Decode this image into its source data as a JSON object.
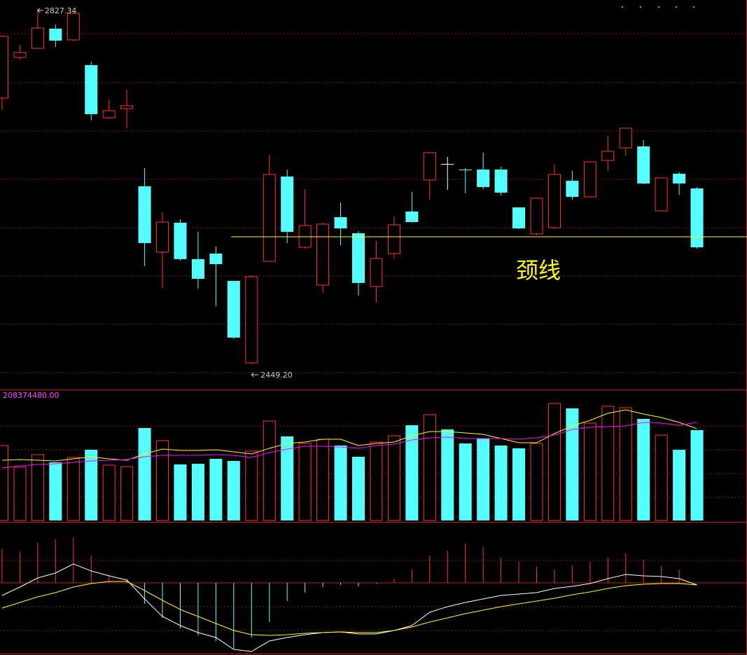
{
  "chart_data": [
    {
      "type": "candlestick",
      "open": [
        2732.1,
        2775.2,
        2784.9,
        2805.8,
        2793.9,
        2767.1,
        2711.2,
        2720.9,
        2638.3,
        2568.3,
        2599.6,
        2560.9,
        2566.8,
        2537.8,
        2450.7,
        2558.6,
        2648.7,
        2573.5,
        2533.3,
        2605.5,
        2588.4,
        2531.8,
        2566.8,
        2611.5,
        2645.0,
        2662.1,
        2656.1,
        2656.1,
        2656.1,
        2615.9,
        2587.7,
        2594.4,
        2644.2,
        2627.1,
        2665.8,
        2679.2,
        2680.7,
        2612.2,
        2651.7,
        2636.0
      ],
      "high": [
        2799.1,
        2788.6,
        2827.34,
        2810.2,
        2823.6,
        2770.8,
        2730.6,
        2741.0,
        2657.6,
        2610.7,
        2603.3,
        2589.9,
        2574.3,
        2537.8,
        2543.7,
        2671.8,
        2656.1,
        2635.3,
        2599.6,
        2621.2,
        2590.6,
        2580.2,
        2606.3,
        2632.3,
        2674.0,
        2669.5,
        2657.6,
        2674.0,
        2659.1,
        2615.9,
        2625.6,
        2662.1,
        2654.7,
        2664.3,
        2691.9,
        2700.1,
        2687.4,
        2647.2,
        2653.9,
        2637.5
      ],
      "low": [
        2719.4,
        2773.0,
        2784.2,
        2786.4,
        2792.4,
        2708.3,
        2709.7,
        2700.1,
        2553.4,
        2529.6,
        2559.4,
        2529.6,
        2511.0,
        2476.0,
        2449.2,
        2558.6,
        2578.0,
        2572.0,
        2525.1,
        2575.7,
        2522.2,
        2514.7,
        2560.9,
        2599.6,
        2624.1,
        2634.6,
        2630.8,
        2635.3,
        2628.6,
        2592.9,
        2586.2,
        2592.9,
        2624.1,
        2626.4,
        2654.7,
        2671.0,
        2640.5,
        2612.2,
        2629.3,
        2572.0
      ],
      "close": [
        2797.6,
        2780.5,
        2806.5,
        2793.1,
        2822.1,
        2715.0,
        2718.7,
        2723.9,
        2578.0,
        2600.3,
        2560.9,
        2540.0,
        2555.6,
        2477.5,
        2542.3,
        2650.9,
        2589.9,
        2596.6,
        2598.1,
        2593.6,
        2535.6,
        2561.6,
        2597.3,
        2600.3,
        2674.0,
        2662.1,
        2655.4,
        2637.5,
        2631.6,
        2593.6,
        2625.6,
        2650.9,
        2627.1,
        2664.3,
        2675.5,
        2700.1,
        2641.3,
        2647.2,
        2641.3,
        2573.5
      ],
      "ylim": [
        2423.1,
        2836.3
      ],
      "up_color": "#ff3232",
      "down_color": "#54ffff",
      "flat_color": "#ffffff",
      "max_label": "2827.34",
      "min_label": "2449.20",
      "neckline": {
        "label": "颈线",
        "value": 2584.7,
        "color": "#ffff00"
      }
    },
    {
      "type": "volume",
      "values": [
        125300000,
        89000000,
        110000000,
        97200000,
        105400000,
        118200000,
        92500000,
        90100000,
        154500000,
        133500000,
        93700000,
        94800000,
        103000000,
        99500000,
        115900000,
        166200000,
        140500000,
        128800000,
        135800000,
        125300000,
        106500000,
        131100000,
        141600000,
        159200000,
        176800000,
        152200000,
        128800000,
        137000000,
        125300000,
        120600000,
        128800000,
        195500000,
        187300000,
        162700000,
        190800000,
        188500000,
        169700000,
        142800000,
        118200000,
        151000000
      ],
      "ylim": [
        0,
        208374480
      ],
      "yticks": [
        {
          "value": 208374480,
          "label": "208374480.00"
        }
      ],
      "tick_color": "#ff44ff",
      "lines": [
        {
          "color": "#ffff00",
          "values": [
            100700000,
            101800000,
            100700000,
            99500000,
            103000000,
            106500000,
            103000000,
            100700000,
            111200000,
            119400000,
            117100000,
            117100000,
            118200000,
            114700000,
            111200000,
            120600000,
            128800000,
            131100000,
            135800000,
            135800000,
            125300000,
            128800000,
            131100000,
            141600000,
            148700000,
            148700000,
            146300000,
            144000000,
            137000000,
            129900000,
            129900000,
            145200000,
            158000000,
            167400000,
            179100000,
            185000000,
            177900000,
            172100000,
            163900000,
            153400000
          ]
        },
        {
          "color": "#ff00ff",
          "values": [
            87800000,
            91300000,
            93700000,
            94800000,
            97200000,
            99500000,
            100700000,
            101800000,
            106500000,
            108900000,
            108900000,
            108900000,
            110000000,
            108900000,
            105400000,
            113500000,
            119400000,
            124100000,
            124100000,
            122900000,
            120600000,
            125300000,
            127600000,
            134600000,
            138100000,
            139300000,
            137000000,
            137000000,
            137000000,
            135800000,
            138100000,
            142800000,
            152200000,
            155700000,
            156900000,
            158000000,
            163900000,
            162700000,
            159200000,
            163900000
          ]
        }
      ]
    },
    {
      "type": "macd",
      "values": [
        12.25,
        11.25,
        14.25,
        15.5,
        16.25,
        9.75,
        3,
        1.5,
        -7.5,
        -12.5,
        -16.25,
        -18.75,
        -20.75,
        -23.5,
        -19.5,
        -14,
        -6.5,
        -3.5,
        -1.5,
        -0.75,
        -1.25,
        -0.25,
        1.5,
        4.75,
        9.75,
        11.5,
        14,
        12.75,
        9,
        7.5,
        5.75,
        4.75,
        6.25,
        7.5,
        9,
        10.5,
        8.25,
        6,
        4.75,
        0
      ],
      "ylim": [
        -25.75,
        21
      ],
      "lines": [
        {
          "color": "#ffffff",
          "values": [
            -4.5,
            -1.5,
            1.75,
            3.5,
            6.75,
            4.25,
            2.5,
            1,
            -5.75,
            -12,
            -15.25,
            -17.75,
            -19.5,
            -23.75,
            -24.5,
            -20.75,
            -19.5,
            -18.5,
            -17.75,
            -17.5,
            -18.25,
            -18.25,
            -17,
            -15.25,
            -10.5,
            -8.5,
            -7,
            -5.75,
            -4.5,
            -4,
            -3.5,
            -2,
            -1.25,
            -0.25,
            1.5,
            3,
            2.5,
            2.25,
            1.5,
            -0.75
          ]
        },
        {
          "color": "#ffff00",
          "values": [
            -9,
            -7,
            -5,
            -3.5,
            -1.5,
            -0.25,
            0.5,
            0.5,
            -2.75,
            -6.25,
            -9.5,
            -12,
            -14.5,
            -17,
            -18.5,
            -18.75,
            -18.5,
            -18,
            -17.75,
            -17.5,
            -17.75,
            -17.75,
            -17,
            -15.75,
            -14,
            -12.5,
            -11,
            -9.75,
            -8.5,
            -7.5,
            -6.5,
            -5.5,
            -4.25,
            -3.25,
            -2,
            -1,
            -0.5,
            -0.25,
            -0.25,
            -0.75
          ]
        }
      ]
    }
  ]
}
